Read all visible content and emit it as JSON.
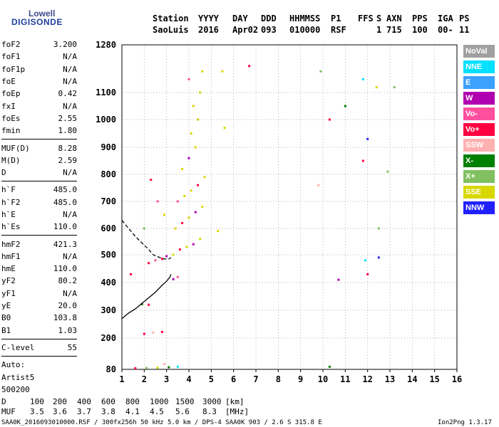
{
  "logo": {
    "line1": "Lowell",
    "line2": "DIGISONDE"
  },
  "header": {
    "row1": [
      "Station",
      "YYYY",
      "DAY",
      "DDD",
      "HHMMSS",
      "P1",
      "FFS",
      "S",
      "AXN",
      "PPS",
      "IGA",
      "PS"
    ],
    "row2": [
      "SaoLuis",
      "2016",
      "Apr02",
      "093",
      "010000",
      "RSF",
      "",
      "1",
      "715",
      "100",
      "00-",
      "11"
    ]
  },
  "params": [
    {
      "name": "foF2",
      "value": "3.200"
    },
    {
      "name": "foF1",
      "value": "N/A"
    },
    {
      "name": "foF1p",
      "value": "N/A"
    },
    {
      "name": "foE",
      "value": "N/A"
    },
    {
      "name": "foEp",
      "value": "0.42"
    },
    {
      "name": "fxI",
      "value": "N/A"
    },
    {
      "name": "foEs",
      "value": "2.55"
    },
    {
      "name": "fmin",
      "value": "1.80"
    },
    {
      "sep": true
    },
    {
      "name": "MUF(D)",
      "value": "8.28"
    },
    {
      "name": "M(D)",
      "value": "2.59"
    },
    {
      "name": "D",
      "value": "N/A"
    },
    {
      "sep": true
    },
    {
      "name": "h`F",
      "value": "485.0"
    },
    {
      "name": "h`F2",
      "value": "485.0"
    },
    {
      "name": "h`E",
      "value": "N/A"
    },
    {
      "name": "h`Es",
      "value": "110.0"
    },
    {
      "sep": true
    },
    {
      "name": "hmF2",
      "value": "421.3"
    },
    {
      "name": "hmF1",
      "value": "N/A"
    },
    {
      "name": "hmE",
      "value": "110.0"
    },
    {
      "name": "yF2",
      "value": "80.2"
    },
    {
      "name": "yF1",
      "value": "N/A"
    },
    {
      "name": "yE",
      "value": "20.0"
    },
    {
      "name": "B0",
      "value": "103.8"
    },
    {
      "name": "B1",
      "value": "1.03"
    },
    {
      "sep": true
    },
    {
      "name": "C-level",
      "value": "55"
    },
    {
      "sep": true
    },
    {
      "name": "Auto:",
      "value": ""
    },
    {
      "name": "Artist5",
      "value": ""
    },
    {
      "name": "500200",
      "value": ""
    }
  ],
  "legend": [
    {
      "label": "NoVal",
      "color": "#a0a0a0"
    },
    {
      "label": "NNE",
      "color": "#00e0ff"
    },
    {
      "label": "E",
      "color": "#3ca0ff"
    },
    {
      "label": "W",
      "color": "#b000b0"
    },
    {
      "label": "Vo-",
      "color": "#ff50a0"
    },
    {
      "label": "Vo+",
      "color": "#ff0040"
    },
    {
      "label": "SSW",
      "color": "#ffb0b0"
    },
    {
      "label": "X-",
      "color": "#008000"
    },
    {
      "label": "X+",
      "color": "#80c060"
    },
    {
      "label": "SSE",
      "color": "#d8d800"
    },
    {
      "label": "NNW",
      "color": "#2020ff"
    }
  ],
  "bottom": {
    "d_label": "D",
    "d_values": [
      "100",
      "200",
      "400",
      "600",
      "800",
      "1000",
      "1500",
      "3000",
      "[km]"
    ],
    "muf_label": "MUF",
    "muf_values": [
      "3.5",
      "3.6",
      "3.7",
      "3.8",
      "4.1",
      "4.5",
      "5.6",
      "8.3",
      "[MHz]"
    ],
    "footer_left": "SAA0K_2016093010000.RSF / 300fx256h 50 kHz 5.0 km / DPS-4 SAA0K 903 / 2.6 S 315.8 E",
    "footer_right": "Ion2Png 1.3.17"
  },
  "chart_data": {
    "type": "scatter",
    "title": "",
    "xlabel": "",
    "ylabel": "",
    "xlim": [
      1,
      16
    ],
    "ylim": [
      80,
      1280
    ],
    "xticks": [
      1,
      2,
      3,
      4,
      5,
      6,
      7,
      8,
      9,
      10,
      11,
      12,
      13,
      14,
      15,
      16
    ],
    "yticks": [
      80,
      200,
      300,
      400,
      500,
      600,
      700,
      800,
      900,
      1000,
      1100,
      1280
    ],
    "grid": true,
    "traces": [
      {
        "name": "profile",
        "style": "solid",
        "x": [
          1.0,
          1.3,
          1.6,
          1.9,
          2.2,
          2.5,
          2.8,
          3.0,
          3.15,
          3.2
        ],
        "y": [
          270,
          290,
          305,
          325,
          345,
          365,
          390,
          405,
          420,
          430
        ]
      },
      {
        "name": "trace",
        "style": "dashed",
        "x": [
          1.0,
          1.3,
          1.6,
          1.9,
          2.2,
          2.4,
          2.7,
          2.9,
          3.1,
          3.2
        ],
        "y": [
          630,
          600,
          570,
          545,
          520,
          500,
          490,
          485,
          485,
          490
        ]
      }
    ],
    "points": [
      [
        2.1,
        85,
        "X+"
      ],
      [
        2.6,
        86,
        "SSE"
      ],
      [
        3.1,
        88,
        "X-"
      ],
      [
        3.5,
        90,
        "NNE"
      ],
      [
        1.6,
        84,
        "Vo+"
      ],
      [
        2.9,
        100,
        "SSW"
      ],
      [
        2.0,
        215,
        "Vo+"
      ],
      [
        2.4,
        220,
        "SSW"
      ],
      [
        2.8,
        222,
        "Vo+"
      ],
      [
        2.2,
        320,
        "Vo+"
      ],
      [
        1.9,
        322,
        "X-"
      ],
      [
        1.4,
        430,
        "Vo+"
      ],
      [
        3.3,
        412,
        "W"
      ],
      [
        3.5,
        420,
        "Vo-"
      ],
      [
        2.2,
        470,
        "Vo+"
      ],
      [
        2.5,
        480,
        "Vo-"
      ],
      [
        2.8,
        485,
        "Vo+"
      ],
      [
        3.0,
        495,
        "W"
      ],
      [
        3.3,
        500,
        "SSE"
      ],
      [
        3.6,
        520,
        "Vo+"
      ],
      [
        3.9,
        530,
        "SSE"
      ],
      [
        4.2,
        540,
        "W"
      ],
      [
        4.5,
        560,
        "SSE"
      ],
      [
        3.4,
        600,
        "SSE"
      ],
      [
        3.7,
        620,
        "Vo+"
      ],
      [
        4.0,
        640,
        "SSE"
      ],
      [
        4.3,
        660,
        "W"
      ],
      [
        4.6,
        680,
        "SSE"
      ],
      [
        3.5,
        700,
        "Vo-"
      ],
      [
        3.8,
        720,
        "SSE"
      ],
      [
        4.1,
        740,
        "SSE"
      ],
      [
        4.4,
        760,
        "Vo+"
      ],
      [
        4.7,
        790,
        "SSE"
      ],
      [
        3.7,
        820,
        "SSE"
      ],
      [
        4.0,
        860,
        "W"
      ],
      [
        4.3,
        900,
        "SSE"
      ],
      [
        4.1,
        950,
        "SSE"
      ],
      [
        4.4,
        1000,
        "SSE"
      ],
      [
        4.2,
        1050,
        "SSE"
      ],
      [
        4.5,
        1100,
        "SSE"
      ],
      [
        4.0,
        1150,
        "Vo-"
      ],
      [
        4.6,
        1180,
        "SSE"
      ],
      [
        2.3,
        780,
        "Vo+"
      ],
      [
        2.6,
        700,
        "Vo-"
      ],
      [
        2.9,
        650,
        "SSE"
      ],
      [
        2.0,
        600,
        "X+"
      ],
      [
        5.3,
        590,
        "SSE"
      ],
      [
        5.6,
        970,
        "SSE"
      ],
      [
        5.5,
        1180,
        "SSE"
      ],
      [
        6.7,
        1200,
        "Vo+"
      ],
      [
        9.9,
        1180,
        "X+"
      ],
      [
        9.8,
        760,
        "SSW"
      ],
      [
        10.3,
        1000,
        "Vo+"
      ],
      [
        10.7,
        410,
        "W"
      ],
      [
        10.3,
        90,
        "X-"
      ],
      [
        11.0,
        1050,
        "X-"
      ],
      [
        11.8,
        1150,
        "NNE"
      ],
      [
        11.8,
        850,
        "Vo+"
      ],
      [
        11.9,
        480,
        "NNE"
      ],
      [
        12.0,
        930,
        "NNW"
      ],
      [
        12.0,
        430,
        "Vo+"
      ],
      [
        12.4,
        1120,
        "SSE"
      ],
      [
        12.5,
        600,
        "X+"
      ],
      [
        12.5,
        490,
        "NNW"
      ],
      [
        12.9,
        810,
        "X+"
      ],
      [
        13.2,
        1120,
        "X+"
      ]
    ]
  }
}
